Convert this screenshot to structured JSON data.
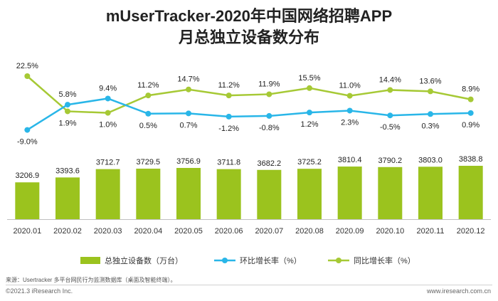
{
  "title_line1": "mUserTracker-2020年中国网络招聘APP",
  "title_line2": "月总独立设备数分布",
  "source": "来源：Usertracker 多平台网民行为监测数据库（桌面及智能终端）。",
  "footer_left": "©2021.3 iResearch Inc.",
  "footer_right": "www.iresearch.com.cn",
  "colors": {
    "bar": "#9bc31e",
    "mom": "#29b6e8",
    "yoy": "#a6c935"
  },
  "chart_data": {
    "type": "bar+line",
    "categories": [
      "2020.01",
      "2020.02",
      "2020.03",
      "2020.04",
      "2020.05",
      "2020.06",
      "2020.07",
      "2020.08",
      "2020.09",
      "2020.10",
      "2020.11",
      "2020.12"
    ],
    "series": [
      {
        "name": "总独立设备数（万台）",
        "type": "bar",
        "values": [
          3206.9,
          3393.6,
          3712.7,
          3729.5,
          3756.9,
          3711.8,
          3682.2,
          3725.2,
          3810.4,
          3790.2,
          3803.0,
          3838.8
        ],
        "labels": [
          "3206.9",
          "3393.6",
          "3712.7",
          "3729.5",
          "3756.9",
          "3711.8",
          "3682.2",
          "3725.2",
          "3810.4",
          "3790.2",
          "3803.0",
          "3838.8"
        ]
      },
      {
        "name": "环比增长率（%）",
        "type": "line",
        "values": [
          -9.0,
          5.8,
          9.4,
          0.5,
          0.7,
          -1.2,
          -0.8,
          1.2,
          2.3,
          -0.5,
          0.3,
          0.9
        ],
        "labels": [
          "-9.0%",
          "5.8%",
          "9.4%",
          "0.5%",
          "0.7%",
          "-1.2%",
          "-0.8%",
          "1.2%",
          "2.3%",
          "-0.5%",
          "0.3%",
          "0.9%"
        ]
      },
      {
        "name": "同比增长率（%）",
        "type": "line",
        "values": [
          22.5,
          1.9,
          1.0,
          11.2,
          14.7,
          11.2,
          11.9,
          15.5,
          11.0,
          14.4,
          13.6,
          8.9
        ],
        "labels": [
          "22.5%",
          "1.9%",
          "1.0%",
          "11.2%",
          "14.7%",
          "11.2%",
          "11.9%",
          "15.5%",
          "11.0%",
          "14.4%",
          "13.6%",
          "8.9%"
        ]
      }
    ]
  }
}
